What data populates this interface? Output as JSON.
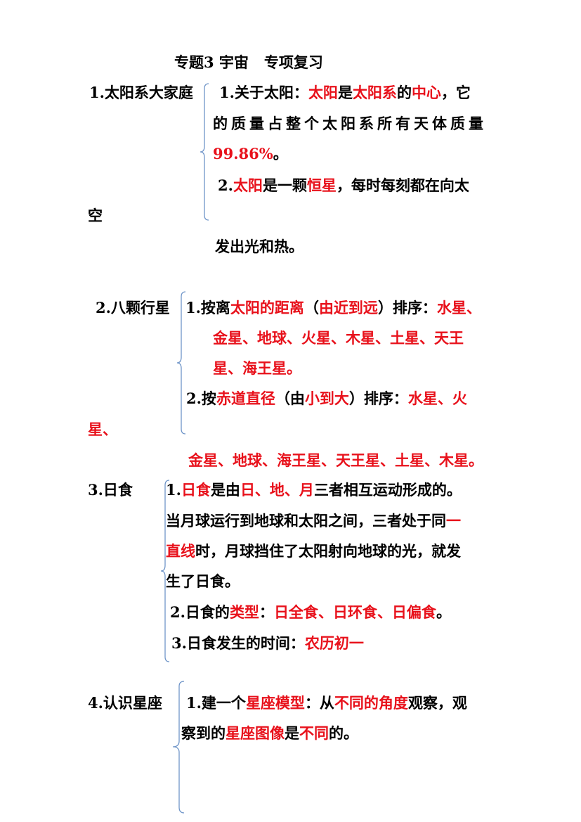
{
  "title": "专题3 宇宙   专项复习",
  "colors": {
    "highlight": "#e8111b",
    "brace": "#6f95c8"
  },
  "sections": [
    {
      "label": "1.太阳系大家庭",
      "items": [
        {
          "runs": [
            [
              "1.关于太阳：",
              false
            ],
            [
              "太阳",
              true
            ],
            [
              "是",
              false
            ],
            [
              "太阳系",
              true
            ],
            [
              "的",
              false
            ],
            [
              "中心",
              true
            ],
            [
              "，它",
              false
            ]
          ]
        },
        {
          "runs": [
            [
              "的质量占整个太阳系所有天体质量",
              false
            ]
          ]
        },
        {
          "runs": [
            [
              "99.86%",
              true
            ],
            [
              "。",
              false
            ]
          ]
        },
        {
          "runs": [
            [
              "2.",
              false
            ],
            [
              "太阳",
              true
            ],
            [
              "是一颗",
              false
            ],
            [
              "恒星",
              true
            ],
            [
              "，每时每刻都在向太",
              false
            ]
          ]
        },
        {
          "runs": [
            [
              "空",
              false
            ]
          ]
        },
        {
          "runs": [
            [
              "发出光和热。",
              false
            ]
          ]
        }
      ]
    },
    {
      "label": "2.八颗行星",
      "items": [
        {
          "runs": [
            [
              "1.按离",
              false
            ],
            [
              "太阳的距离",
              true
            ],
            [
              "（",
              false
            ],
            [
              "由近到远",
              true
            ],
            [
              "）排序：",
              false
            ],
            [
              "水星、",
              true
            ]
          ]
        },
        {
          "runs": [
            [
              "金星、地球、火星、木星、土星、天王",
              true
            ]
          ]
        },
        {
          "runs": [
            [
              "星、海王星。",
              true
            ]
          ]
        },
        {
          "runs": [
            [
              "2.按",
              false
            ],
            [
              "赤道直径",
              true
            ],
            [
              "（由",
              false
            ],
            [
              "小到大",
              true
            ],
            [
              "）排序：",
              false
            ],
            [
              "水星、火",
              true
            ]
          ]
        },
        {
          "runs": [
            [
              "星、",
              true
            ]
          ]
        },
        {
          "runs": [
            [
              "金星、地球、海王星、天王星、土星、木星。",
              true
            ]
          ]
        }
      ]
    },
    {
      "label": "3.日食",
      "items": [
        {
          "runs": [
            [
              "1.",
              false
            ],
            [
              "日食",
              true
            ],
            [
              "是由",
              false
            ],
            [
              "日、地、月",
              true
            ],
            [
              "三者相互运动形成的。",
              false
            ]
          ]
        },
        {
          "runs": [
            [
              "当月球运行到地球和太阳之间，三者处于同",
              false
            ],
            [
              "一",
              true
            ]
          ]
        },
        {
          "runs": [
            [
              "直线",
              true
            ],
            [
              "时，月球挡住了太阳射向地球的光，就发",
              false
            ]
          ]
        },
        {
          "runs": [
            [
              "生了日食。",
              false
            ]
          ]
        },
        {
          "runs": [
            [
              "2.日食的",
              false
            ],
            [
              "类型",
              true
            ],
            [
              "：",
              false
            ],
            [
              "日全食、日环食、日偏食",
              true
            ],
            [
              "。",
              false
            ]
          ]
        },
        {
          "runs": [
            [
              "3.日食发生的时间：",
              false
            ],
            [
              "农历初一",
              true
            ]
          ]
        }
      ]
    },
    {
      "label": "4.认识星座",
      "items": [
        {
          "runs": [
            [
              "1.建一个",
              false
            ],
            [
              "星座模型",
              true
            ],
            [
              "：从",
              false
            ],
            [
              "不同的角度",
              true
            ],
            [
              "观察，观",
              false
            ]
          ]
        },
        {
          "runs": [
            [
              "察到的",
              false
            ],
            [
              "星座图像",
              true
            ],
            [
              "是",
              false
            ],
            [
              "不同",
              true
            ],
            [
              "的。",
              false
            ]
          ]
        }
      ]
    }
  ]
}
